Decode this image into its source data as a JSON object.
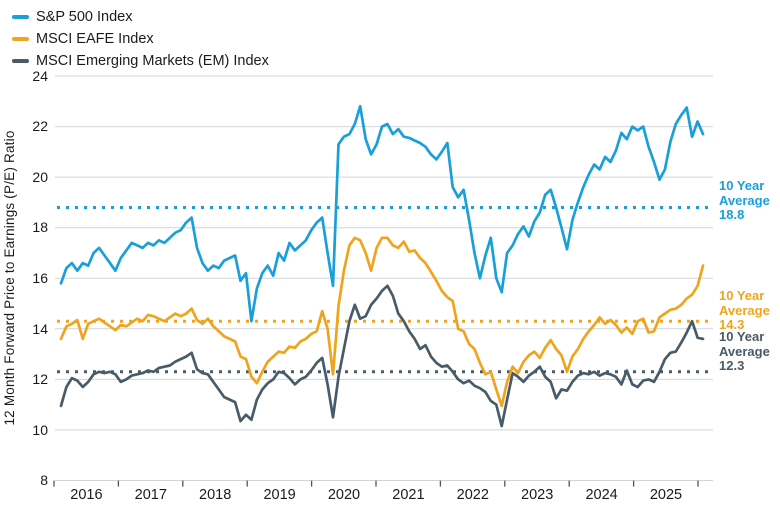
{
  "legend": [
    {
      "label": "S&P 500 Index",
      "color": "#199fda"
    },
    {
      "label": "MSCI EAFE Index",
      "color": "#f0a41e"
    },
    {
      "label": "MSCI Emerging Markets (EM) Index",
      "color": "#485b68"
    }
  ],
  "y_axis": {
    "title": "12 Month Forward Price to Earnings (P/E) Ratio",
    "ticks": [
      24,
      22,
      20,
      18,
      16,
      14,
      12,
      10,
      8
    ]
  },
  "x_axis": {
    "labels": [
      "2016",
      "2017",
      "2018",
      "2019",
      "2020",
      "2021",
      "2022",
      "2023",
      "2024",
      "2025"
    ]
  },
  "annotations": [
    {
      "lines": [
        "10 Year",
        "Average",
        "18.8"
      ],
      "value": 18.8,
      "color": "#199fda"
    },
    {
      "lines": [
        "10 Year",
        "Average",
        "14.3"
      ],
      "value": 14.3,
      "color": "#f0a41e"
    },
    {
      "lines": [
        "10 Year",
        "Average",
        "12.3"
      ],
      "value": 12.3,
      "color": "#485b68"
    }
  ],
  "colors": {
    "gridline": "#d2d5d8",
    "tick": "#44586a",
    "text": "#1b1b1b"
  },
  "chart_data": {
    "type": "line",
    "frequency": "monthly",
    "x_start": "2016-01",
    "x_end": "2025-11",
    "ylabel": "12 Month Forward Price to Earnings (P/E) Ratio",
    "ylim": [
      8,
      24
    ],
    "grid": "horizontal",
    "legend_position": "top-left",
    "x_tick_labels": [
      "2016",
      "2017",
      "2018",
      "2019",
      "2020",
      "2021",
      "2022",
      "2023",
      "2024",
      "2025"
    ],
    "series": [
      {
        "name": "S&P 500 Index",
        "color": "#199fda",
        "average_10yr": 18.8,
        "values": [
          15.8,
          16.4,
          16.6,
          16.3,
          16.6,
          16.5,
          17.0,
          17.2,
          16.9,
          16.6,
          16.3,
          16.8,
          17.1,
          17.4,
          17.3,
          17.2,
          17.4,
          17.3,
          17.5,
          17.4,
          17.6,
          17.8,
          17.9,
          18.2,
          18.4,
          17.2,
          16.6,
          16.3,
          16.5,
          16.4,
          16.7,
          16.8,
          16.9,
          15.9,
          16.2,
          14.3,
          15.6,
          16.2,
          16.5,
          16.1,
          17.0,
          16.7,
          17.4,
          17.1,
          17.3,
          17.5,
          17.9,
          18.2,
          18.4,
          17.0,
          15.7,
          21.3,
          21.6,
          21.7,
          22.1,
          22.8,
          21.5,
          20.9,
          21.3,
          22.0,
          22.1,
          21.7,
          21.9,
          21.6,
          21.55,
          21.45,
          21.35,
          21.2,
          20.9,
          20.7,
          21.0,
          21.35,
          19.6,
          19.2,
          19.5,
          18.3,
          17.0,
          16.0,
          16.9,
          17.6,
          16.0,
          15.45,
          17.0,
          17.3,
          17.75,
          18.05,
          17.65,
          18.25,
          18.6,
          19.3,
          19.5,
          18.8,
          18.0,
          17.15,
          18.3,
          19.0,
          19.6,
          20.1,
          20.5,
          20.3,
          20.8,
          20.6,
          21.05,
          21.75,
          21.5,
          22.0,
          21.85,
          22.0,
          21.2,
          20.6,
          19.9,
          20.3,
          21.4,
          22.1,
          22.45,
          22.75,
          21.6,
          22.2,
          21.7
        ]
      },
      {
        "name": "MSCI EAFE Index",
        "color": "#f0a41e",
        "average_10yr": 14.3,
        "values": [
          13.6,
          14.1,
          14.2,
          14.35,
          13.6,
          14.2,
          14.3,
          14.4,
          14.25,
          14.1,
          13.95,
          14.15,
          14.1,
          14.25,
          14.4,
          14.3,
          14.55,
          14.5,
          14.4,
          14.3,
          14.45,
          14.6,
          14.5,
          14.6,
          14.8,
          14.35,
          14.2,
          14.4,
          14.1,
          13.9,
          13.7,
          13.6,
          13.5,
          12.9,
          12.8,
          12.1,
          11.85,
          12.3,
          12.7,
          12.9,
          13.1,
          13.05,
          13.3,
          13.25,
          13.5,
          13.6,
          13.8,
          13.9,
          14.7,
          14.0,
          12.2,
          14.9,
          16.3,
          17.3,
          17.6,
          17.5,
          17.0,
          16.3,
          17.2,
          17.6,
          17.6,
          17.3,
          17.2,
          17.45,
          17.05,
          17.1,
          16.8,
          16.6,
          16.25,
          15.9,
          15.5,
          15.25,
          15.1,
          14.0,
          13.9,
          13.4,
          13.2,
          12.65,
          12.2,
          12.3,
          11.6,
          10.95,
          11.9,
          12.5,
          12.25,
          12.7,
          12.95,
          13.1,
          12.85,
          13.25,
          13.55,
          13.2,
          12.95,
          12.3,
          12.9,
          13.2,
          13.6,
          13.9,
          14.15,
          14.45,
          14.2,
          14.35,
          14.15,
          13.85,
          14.05,
          13.8,
          14.3,
          14.4,
          13.85,
          13.9,
          14.45,
          14.6,
          14.75,
          14.8,
          14.95,
          15.2,
          15.35,
          15.7,
          16.5
        ]
      },
      {
        "name": "MSCI Emerging Markets (EM) Index",
        "color": "#485b68",
        "average_10yr": 12.3,
        "values": [
          10.95,
          11.7,
          12.05,
          11.95,
          11.7,
          11.9,
          12.2,
          12.3,
          12.25,
          12.3,
          12.2,
          11.9,
          12.0,
          12.15,
          12.2,
          12.25,
          12.35,
          12.3,
          12.45,
          12.5,
          12.55,
          12.7,
          12.8,
          12.9,
          13.05,
          12.4,
          12.25,
          12.2,
          11.9,
          11.6,
          11.3,
          11.2,
          11.1,
          10.35,
          10.6,
          10.4,
          11.2,
          11.6,
          11.85,
          12.0,
          12.3,
          12.25,
          12.05,
          11.8,
          12.0,
          12.1,
          12.35,
          12.65,
          12.85,
          11.8,
          10.5,
          12.1,
          13.2,
          14.3,
          14.95,
          14.4,
          14.5,
          14.95,
          15.2,
          15.5,
          15.7,
          15.3,
          14.6,
          14.3,
          13.9,
          13.6,
          13.2,
          13.35,
          12.9,
          12.65,
          12.5,
          12.55,
          12.3,
          12.0,
          11.85,
          11.95,
          11.75,
          11.65,
          11.5,
          11.15,
          11.0,
          10.15,
          11.2,
          12.25,
          12.1,
          11.9,
          12.15,
          12.3,
          12.5,
          12.1,
          11.9,
          11.25,
          11.6,
          11.55,
          11.9,
          12.15,
          12.25,
          12.2,
          12.3,
          12.15,
          12.25,
          12.2,
          12.1,
          11.8,
          12.35,
          11.8,
          11.7,
          11.95,
          12.0,
          11.9,
          12.3,
          12.8,
          13.05,
          13.1,
          13.45,
          13.85,
          14.3,
          13.65,
          13.6
        ]
      }
    ]
  }
}
